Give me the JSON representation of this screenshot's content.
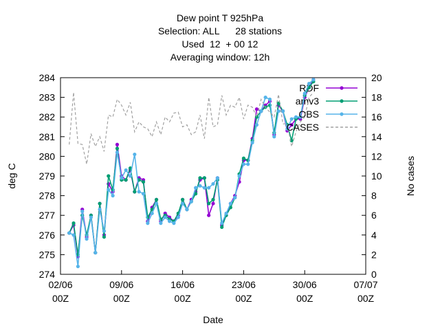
{
  "chart_data": {
    "type": "line",
    "title": [
      "Dew point T 925hPa",
      "Selection: ALL      28 stations",
      "Used  12  + 00 12",
      "Averaging window: 12h"
    ],
    "x_label": "Date",
    "y_label": "deg C",
    "y2_label": "No cases",
    "x": [
      "03/06 00Z",
      "03/06 12Z",
      "04/06 00Z",
      "04/06 12Z",
      "05/06 00Z",
      "05/06 12Z",
      "06/06 00Z",
      "06/06 12Z",
      "07/06 00Z",
      "07/06 12Z",
      "08/06 00Z",
      "08/06 12Z",
      "09/06 00Z",
      "09/06 12Z",
      "10/06 00Z",
      "10/06 12Z",
      "11/06 00Z",
      "11/06 12Z",
      "12/06 00Z",
      "12/06 12Z",
      "13/06 00Z",
      "13/06 12Z",
      "14/06 00Z",
      "14/06 12Z",
      "15/06 00Z",
      "15/06 12Z",
      "16/06 00Z",
      "16/06 12Z",
      "17/06 00Z",
      "17/06 12Z",
      "18/06 00Z",
      "18/06 12Z",
      "19/06 00Z",
      "19/06 12Z",
      "20/06 00Z",
      "20/06 12Z",
      "21/06 00Z",
      "21/06 12Z",
      "22/06 00Z",
      "22/06 12Z",
      "23/06 00Z",
      "23/06 12Z",
      "24/06 00Z",
      "24/06 12Z",
      "25/06 00Z",
      "25/06 12Z",
      "26/06 00Z",
      "26/06 12Z",
      "27/06 00Z",
      "27/06 12Z",
      "28/06 00Z",
      "28/06 12Z",
      "29/06 00Z",
      "29/06 12Z",
      "30/06 00Z",
      "30/06 12Z",
      "01/07 00Z"
    ],
    "xlim": [
      "02/06 00Z",
      "07/07 00Z"
    ],
    "xticks": [
      "02/06 00Z",
      "09/06 00Z",
      "16/06 00Z",
      "23/06 00Z",
      "30/06 00Z",
      "07/07 00Z"
    ],
    "ylim": [
      274,
      284
    ],
    "yticks": [
      274,
      275,
      276,
      277,
      278,
      279,
      280,
      281,
      282,
      283,
      284
    ],
    "y2lim": [
      0,
      20
    ],
    "y2ticks": [
      0,
      2,
      4,
      6,
      8,
      10,
      12,
      14,
      16,
      18,
      20
    ],
    "legend": "top-right",
    "series": [
      {
        "name": "RDF",
        "color": "#9400d3",
        "markers": true,
        "dashed": false,
        "values": [
          276.1,
          276.5,
          274.9,
          277.3,
          275.9,
          277.0,
          275.1,
          277.6,
          276.0,
          278.6,
          278.2,
          280.6,
          279.0,
          278.8,
          279.3,
          278.2,
          278.9,
          278.8,
          276.7,
          277.4,
          277.8,
          276.7,
          277.1,
          276.9,
          276.7,
          277.0,
          277.8,
          277.3,
          277.8,
          278.2,
          278.8,
          278.9,
          277.0,
          277.6,
          278.9,
          276.5,
          277.0,
          277.6,
          278.0,
          278.7,
          279.8,
          279.8,
          280.9,
          282.4,
          282.3,
          282.6,
          282.8,
          281.1,
          282.6,
          282.3,
          281.3,
          281.6,
          281.9,
          281.9,
          283.0,
          283.5,
          283.9
        ]
      },
      {
        "name": "amv3",
        "color": "#009e73",
        "markers": true,
        "dashed": false,
        "values": [
          276.1,
          276.6,
          275.0,
          277.0,
          276.0,
          277.0,
          275.1,
          277.6,
          275.9,
          279.0,
          278.3,
          280.4,
          278.8,
          278.8,
          279.4,
          278.2,
          278.8,
          278.7,
          276.9,
          277.3,
          277.8,
          276.8,
          277.0,
          276.8,
          276.7,
          277.1,
          277.8,
          277.3,
          277.7,
          278.1,
          278.9,
          278.9,
          277.6,
          277.8,
          278.8,
          276.4,
          277.0,
          277.4,
          277.9,
          279.1,
          279.9,
          279.8,
          280.8,
          282.0,
          282.3,
          282.5,
          282.6,
          281.2,
          282.7,
          282.3,
          281.6,
          280.8,
          281.9,
          282.0,
          283.1,
          283.5,
          283.8
        ]
      },
      {
        "name": "OBS",
        "color": "#56b4e9",
        "markers": true,
        "dashed": false,
        "values": [
          276.1,
          276.0,
          274.4,
          277.2,
          275.8,
          276.9,
          275.1,
          277.3,
          276.2,
          278.3,
          278.0,
          280.2,
          278.9,
          279.3,
          279.0,
          280.1,
          278.2,
          278.1,
          276.6,
          277.1,
          277.6,
          276.6,
          276.9,
          276.7,
          276.6,
          276.9,
          277.6,
          277.3,
          277.7,
          278.4,
          278.5,
          278.4,
          278.4,
          278.6,
          278.9,
          276.6,
          277.1,
          277.6,
          277.9,
          279.0,
          279.6,
          279.6,
          280.7,
          281.6,
          282.3,
          283.0,
          282.9,
          281.0,
          282.3,
          282.3,
          281.4,
          281.9,
          282.0,
          282.0,
          283.2,
          283.7,
          283.9
        ]
      },
      {
        "name": "CASES",
        "color": "#a0a0a0",
        "markers": false,
        "dashed": true,
        "axis": "y2",
        "values": [
          13.2,
          18.5,
          13.3,
          13.2,
          11.2,
          14.3,
          13.0,
          14.0,
          12.5,
          16.2,
          16.0,
          17.8,
          17.2,
          16.2,
          17.5,
          14.5,
          15.5,
          15.0,
          14.8,
          14.0,
          15.5,
          14.2,
          16.0,
          15.5,
          16.4,
          16.5,
          15.0,
          15.2,
          14.2,
          14.5,
          16.2,
          13.8,
          18.0,
          15.0,
          15.2,
          18.2,
          16.2,
          17.2,
          17.0,
          18.0,
          15.8,
          17.2,
          17.0,
          16.0,
          17.8,
          17.0,
          16.5,
          16.0,
          18.3,
          15.3,
          15.3,
          13.0,
          14.5,
          15.5,
          16.0,
          18.0,
          18.5
        ]
      }
    ]
  }
}
